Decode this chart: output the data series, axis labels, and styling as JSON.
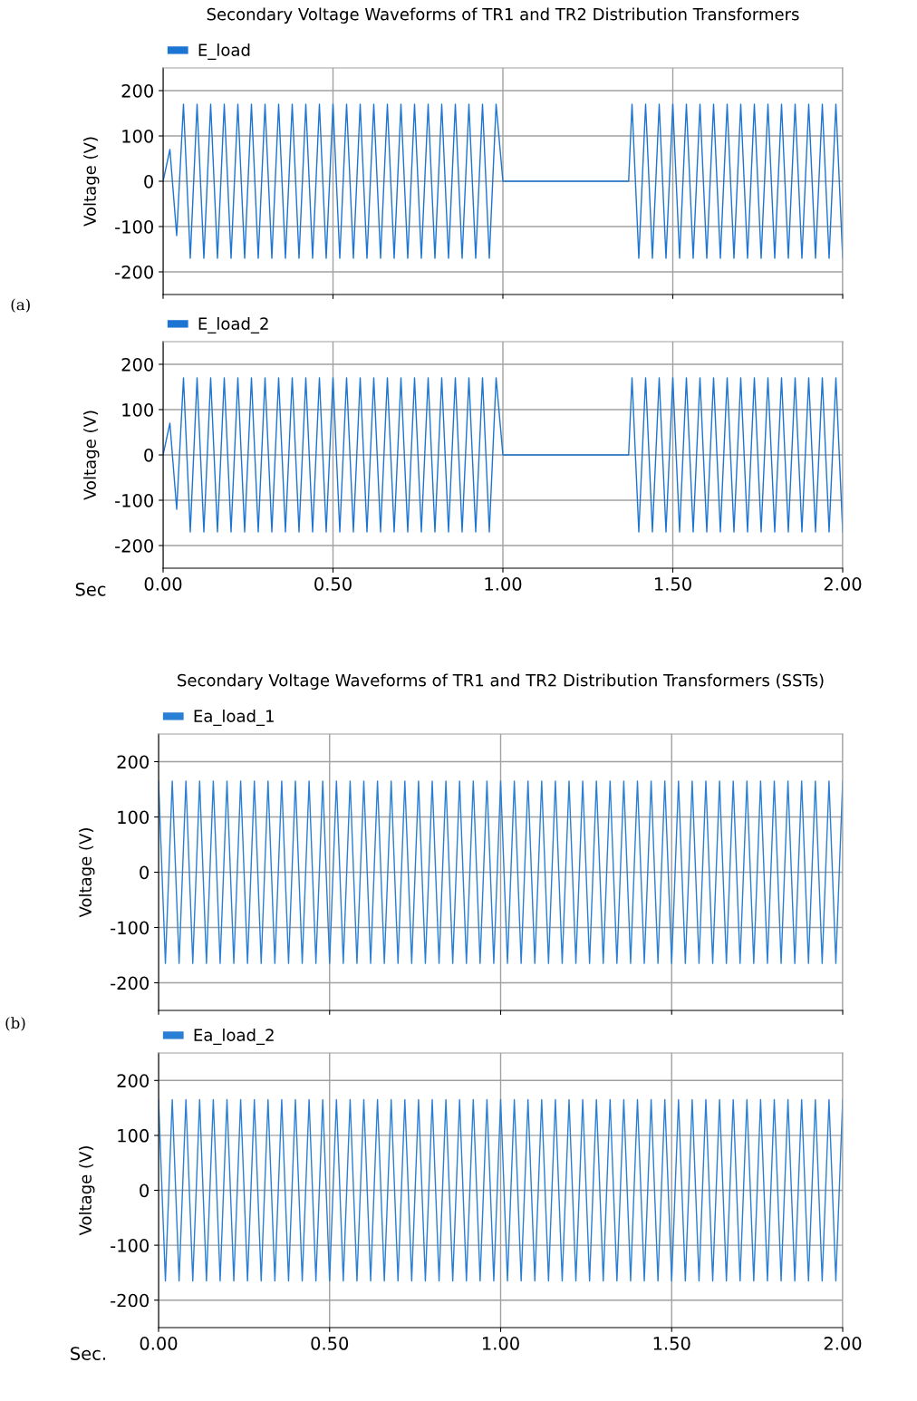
{
  "chart_data": [
    {
      "type": "line",
      "title": "Secondary Voltage Waveforms of TR1 and TR2 Distribution Transformers",
      "ylabel": "Voltage (V)",
      "annotations": [
        "(a)"
      ],
      "xlim": [
        0,
        2
      ],
      "xticks": [
        {
          "value": 0,
          "label": null
        },
        {
          "value": 0.5,
          "label": null
        },
        {
          "value": 1,
          "label": null
        },
        {
          "value": 1.5,
          "label": null
        },
        {
          "value": 2,
          "label": null
        }
      ],
      "ylim": [
        -250,
        250
      ],
      "yticks": [
        -200,
        -100,
        0,
        100,
        200
      ],
      "tick_labels": "y",
      "grid": true,
      "legend": "top left",
      "series": [
        {
          "name": "E_load",
          "color": "#1c75d2",
          "x": [
            0,
            0.02,
            0.04,
            0.06,
            0.08,
            0.1,
            0.12,
            0.14,
            0.16,
            0.18,
            0.2,
            0.22,
            0.24,
            0.26,
            0.28,
            0.3,
            0.32,
            0.34,
            0.36,
            0.38,
            0.4,
            0.42,
            0.44,
            0.46,
            0.48,
            0.5,
            0.52,
            0.54,
            0.56,
            0.58,
            0.6,
            0.62,
            0.64,
            0.66,
            0.68,
            0.7,
            0.72,
            0.74,
            0.76,
            0.78,
            0.8,
            0.82,
            0.84,
            0.86,
            0.88,
            0.9,
            0.92,
            0.94,
            0.96,
            0.98,
            1.0,
            1.37,
            1.38,
            1.4,
            1.42,
            1.44,
            1.46,
            1.48,
            1.5,
            1.52,
            1.54,
            1.56,
            1.58,
            1.6,
            1.62,
            1.64,
            1.66,
            1.68,
            1.7,
            1.72,
            1.74,
            1.76,
            1.78,
            1.8,
            1.82,
            1.84,
            1.86,
            1.88,
            1.9,
            1.92,
            1.94,
            1.96,
            1.98,
            2.0
          ],
          "values": [
            0,
            70,
            -120,
            170,
            -170,
            170,
            -170,
            170,
            -170,
            170,
            -170,
            170,
            -170,
            170,
            -170,
            170,
            -170,
            170,
            -170,
            170,
            -170,
            170,
            -170,
            170,
            -170,
            170,
            -170,
            170,
            -170,
            170,
            -170,
            170,
            -170,
            170,
            -170,
            170,
            -170,
            170,
            -170,
            170,
            -170,
            170,
            -170,
            170,
            -170,
            170,
            -170,
            170,
            -170,
            170,
            0,
            0,
            170,
            -170,
            170,
            -170,
            170,
            -170,
            170,
            -170,
            170,
            -170,
            170,
            -170,
            170,
            -170,
            170,
            -170,
            170,
            -170,
            170,
            -170,
            170,
            -170,
            170,
            -170,
            170,
            -170,
            170,
            -170,
            170,
            -170,
            170,
            -170
          ]
        }
      ]
    },
    {
      "type": "line",
      "xlabel": "Sec",
      "ylabel": "Voltage (V)",
      "xlim": [
        0,
        2
      ],
      "xticks": [
        {
          "value": 0,
          "label": "0.00"
        },
        {
          "value": 0.5,
          "label": "0.50"
        },
        {
          "value": 1,
          "label": "1.00"
        },
        {
          "value": 1.5,
          "label": "1.50"
        },
        {
          "value": 2,
          "label": "2.00"
        }
      ],
      "ylim": [
        -250,
        250
      ],
      "yticks": [
        -200,
        -100,
        0,
        100,
        200
      ],
      "grid": true,
      "legend": "top left",
      "series": [
        {
          "name": "E_load_2",
          "color": "#1c75d2",
          "x": [
            0,
            0.02,
            0.04,
            0.06,
            0.08,
            0.1,
            0.12,
            0.14,
            0.16,
            0.18,
            0.2,
            0.22,
            0.24,
            0.26,
            0.28,
            0.3,
            0.32,
            0.34,
            0.36,
            0.38,
            0.4,
            0.42,
            0.44,
            0.46,
            0.48,
            0.5,
            0.52,
            0.54,
            0.56,
            0.58,
            0.6,
            0.62,
            0.64,
            0.66,
            0.68,
            0.7,
            0.72,
            0.74,
            0.76,
            0.78,
            0.8,
            0.82,
            0.84,
            0.86,
            0.88,
            0.9,
            0.92,
            0.94,
            0.96,
            0.98,
            1.0,
            1.37,
            1.38,
            1.4,
            1.42,
            1.44,
            1.46,
            1.48,
            1.5,
            1.52,
            1.54,
            1.56,
            1.58,
            1.6,
            1.62,
            1.64,
            1.66,
            1.68,
            1.7,
            1.72,
            1.74,
            1.76,
            1.78,
            1.8,
            1.82,
            1.84,
            1.86,
            1.88,
            1.9,
            1.92,
            1.94,
            1.96,
            1.98,
            2.0
          ],
          "values": [
            0,
            70,
            -120,
            170,
            -170,
            170,
            -170,
            170,
            -170,
            170,
            -170,
            170,
            -170,
            170,
            -170,
            170,
            -170,
            170,
            -170,
            170,
            -170,
            170,
            -170,
            170,
            -170,
            170,
            -170,
            170,
            -170,
            170,
            -170,
            170,
            -170,
            170,
            -170,
            170,
            -170,
            170,
            -170,
            170,
            -170,
            170,
            -170,
            170,
            -170,
            170,
            -170,
            170,
            -170,
            170,
            0,
            0,
            170,
            -170,
            170,
            -170,
            170,
            -170,
            170,
            -170,
            170,
            -170,
            170,
            -170,
            170,
            -170,
            170,
            -170,
            170,
            -170,
            170,
            -170,
            170,
            -170,
            170,
            -170,
            170,
            -170,
            170,
            -170,
            170,
            -170,
            170,
            -170
          ]
        }
      ]
    },
    {
      "type": "line",
      "title": "Secondary Voltage Waveforms of TR1 and TR2 Distribution Transformers (SSTs)",
      "ylabel": "Voltage (V)",
      "annotations": [
        "(b)"
      ],
      "xlim": [
        0,
        2
      ],
      "xticks": [
        {
          "value": 0,
          "label": null
        },
        {
          "value": 0.5,
          "label": null
        },
        {
          "value": 1,
          "label": null
        },
        {
          "value": 1.5,
          "label": null
        },
        {
          "value": 2,
          "label": null
        }
      ],
      "ylim": [
        -250,
        250
      ],
      "yticks": [
        -200,
        -100,
        0,
        100,
        200
      ],
      "tick_labels": "y",
      "grid": true,
      "legend": "top left",
      "series": [
        {
          "name": "Ea_load_1",
          "color": "#2a7fd4",
          "x": [
            0,
            0.02,
            0.04,
            0.06,
            0.08,
            0.1,
            0.12,
            0.14,
            0.16,
            0.18,
            0.2,
            0.22,
            0.24,
            0.26,
            0.28,
            0.3,
            0.32,
            0.34,
            0.36,
            0.38,
            0.4,
            0.42,
            0.44,
            0.46,
            0.48,
            0.5,
            0.52,
            0.54,
            0.56,
            0.58,
            0.6,
            0.62,
            0.64,
            0.66,
            0.68,
            0.7,
            0.72,
            0.74,
            0.76,
            0.78,
            0.8,
            0.82,
            0.84,
            0.86,
            0.88,
            0.9,
            0.92,
            0.94,
            0.96,
            0.98,
            1.0,
            1.02,
            1.04,
            1.06,
            1.08,
            1.1,
            1.12,
            1.14,
            1.16,
            1.18,
            1.2,
            1.22,
            1.24,
            1.26,
            1.28,
            1.3,
            1.32,
            1.34,
            1.36,
            1.38,
            1.4,
            1.42,
            1.44,
            1.46,
            1.48,
            1.5,
            1.52,
            1.54,
            1.56,
            1.58,
            1.6,
            1.62,
            1.64,
            1.66,
            1.68,
            1.7,
            1.72,
            1.74,
            1.76,
            1.78,
            1.8,
            1.82,
            1.84,
            1.86,
            1.88,
            1.9,
            1.92,
            1.94,
            1.96,
            1.98,
            2.0
          ],
          "values": [
            165,
            -165,
            165,
            -165,
            165,
            -165,
            165,
            -165,
            165,
            -165,
            165,
            -165,
            165,
            -165,
            165,
            -165,
            165,
            -165,
            165,
            -165,
            165,
            -165,
            165,
            -165,
            165,
            -165,
            165,
            -165,
            165,
            -165,
            165,
            -165,
            165,
            -165,
            165,
            -165,
            165,
            -165,
            165,
            -165,
            165,
            -165,
            165,
            -165,
            165,
            -165,
            165,
            -165,
            165,
            -165,
            165,
            -165,
            165,
            -165,
            165,
            -165,
            165,
            -165,
            165,
            -165,
            165,
            -165,
            165,
            -165,
            165,
            -165,
            165,
            -165,
            165,
            -165,
            165,
            -165,
            165,
            -165,
            165,
            -165,
            165,
            -165,
            165,
            -165,
            165,
            -165,
            165,
            -165,
            165,
            -165,
            165,
            -165,
            165,
            -165,
            165,
            -165,
            165,
            -165,
            165,
            -165,
            165,
            -165,
            165,
            -165,
            165
          ]
        }
      ]
    },
    {
      "type": "line",
      "xlabel": "Sec.",
      "ylabel": "Voltage (V)",
      "xlim": [
        0,
        2
      ],
      "xticks": [
        {
          "value": 0,
          "label": "0.00"
        },
        {
          "value": 0.5,
          "label": "0.50"
        },
        {
          "value": 1,
          "label": "1.00"
        },
        {
          "value": 1.5,
          "label": "1.50"
        },
        {
          "value": 2,
          "label": "2.00"
        }
      ],
      "ylim": [
        -250,
        250
      ],
      "yticks": [
        -200,
        -100,
        0,
        100,
        200
      ],
      "grid": true,
      "legend": "top left",
      "series": [
        {
          "name": "Ea_load_2",
          "color": "#2a7fd4",
          "x": [
            0,
            0.02,
            0.04,
            0.06,
            0.08,
            0.1,
            0.12,
            0.14,
            0.16,
            0.18,
            0.2,
            0.22,
            0.24,
            0.26,
            0.28,
            0.3,
            0.32,
            0.34,
            0.36,
            0.38,
            0.4,
            0.42,
            0.44,
            0.46,
            0.48,
            0.5,
            0.52,
            0.54,
            0.56,
            0.58,
            0.6,
            0.62,
            0.64,
            0.66,
            0.68,
            0.7,
            0.72,
            0.74,
            0.76,
            0.78,
            0.8,
            0.82,
            0.84,
            0.86,
            0.88,
            0.9,
            0.92,
            0.94,
            0.96,
            0.98,
            1.0,
            1.02,
            1.04,
            1.06,
            1.08,
            1.1,
            1.12,
            1.14,
            1.16,
            1.18,
            1.2,
            1.22,
            1.24,
            1.26,
            1.28,
            1.3,
            1.32,
            1.34,
            1.36,
            1.38,
            1.4,
            1.42,
            1.44,
            1.46,
            1.48,
            1.5,
            1.52,
            1.54,
            1.56,
            1.58,
            1.6,
            1.62,
            1.64,
            1.66,
            1.68,
            1.7,
            1.72,
            1.74,
            1.76,
            1.78,
            1.8,
            1.82,
            1.84,
            1.86,
            1.88,
            1.9,
            1.92,
            1.94,
            1.96,
            1.98,
            2.0
          ],
          "values": [
            165,
            -165,
            165,
            -165,
            165,
            -165,
            165,
            -165,
            165,
            -165,
            165,
            -165,
            165,
            -165,
            165,
            -165,
            165,
            -165,
            165,
            -165,
            165,
            -165,
            165,
            -165,
            165,
            -165,
            165,
            -165,
            165,
            -165,
            165,
            -165,
            165,
            -165,
            165,
            -165,
            165,
            -165,
            165,
            -165,
            165,
            -165,
            165,
            -165,
            165,
            -165,
            165,
            -165,
            165,
            -165,
            165,
            -165,
            165,
            -165,
            165,
            -165,
            165,
            -165,
            165,
            -165,
            165,
            -165,
            165,
            -165,
            165,
            -165,
            165,
            -165,
            165,
            -165,
            165,
            -165,
            165,
            -165,
            165,
            -165,
            165,
            -165,
            165,
            -165,
            165,
            -165,
            165,
            -165,
            165,
            -165,
            165,
            -165,
            165,
            -165,
            165,
            -165,
            165,
            -165,
            165,
            -165,
            165,
            -165,
            165,
            -165,
            165
          ]
        }
      ]
    }
  ]
}
